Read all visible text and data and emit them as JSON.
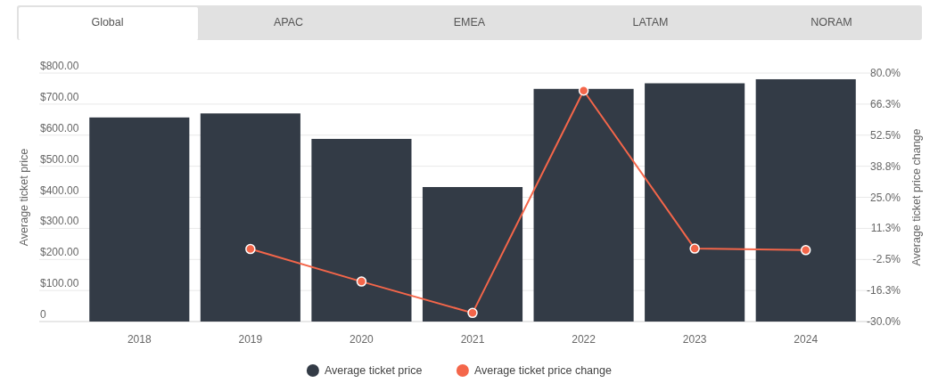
{
  "chart_data": {
    "type": "bar",
    "categories": [
      "2018",
      "2019",
      "2020",
      "2021",
      "2022",
      "2023",
      "2024"
    ],
    "ylabel": "Average ticket price",
    "y2label": "Average ticket price change",
    "series": [
      {
        "name": "Average ticket price",
        "color": "#333b46",
        "values": [
          657,
          670,
          588,
          433,
          749,
          767,
          780
        ]
      },
      {
        "name": "Average ticket price change",
        "type": "line",
        "axis": "y2",
        "color": "#f4664a",
        "values": [
          null,
          2.1,
          -12.3,
          -26.2,
          72.2,
          2.3,
          1.6
        ]
      }
    ],
    "ylim": [
      0,
      800
    ],
    "yticks": [
      {
        "value": 0,
        "label": "0"
      },
      {
        "value": 100,
        "label": "$100.00"
      },
      {
        "value": 200,
        "label": "$200.00"
      },
      {
        "value": 300,
        "label": "$300.00"
      },
      {
        "value": 400,
        "label": "$400.00"
      },
      {
        "value": 500,
        "label": "$500.00"
      },
      {
        "value": 600,
        "label": "$600.00"
      },
      {
        "value": 700,
        "label": "$700.00"
      },
      {
        "value": 800,
        "label": "$800.00"
      }
    ],
    "y2lim": [
      -30,
      80
    ],
    "y2ticks": [
      {
        "value": -30,
        "label": "-30.0%"
      },
      {
        "value": -16.25,
        "label": "-16.3%"
      },
      {
        "value": -2.5,
        "label": "-2.5%"
      },
      {
        "value": 11.25,
        "label": "11.3%"
      },
      {
        "value": 25,
        "label": "25.0%"
      },
      {
        "value": 38.75,
        "label": "38.8%"
      },
      {
        "value": 52.5,
        "label": "52.5%"
      },
      {
        "value": 66.25,
        "label": "66.3%"
      },
      {
        "value": 80,
        "label": "80.0%"
      }
    ],
    "annotations": [
      "Global",
      "APAC",
      "EMEA",
      "LATAM",
      "NORAM"
    ],
    "grid": "y",
    "legend": "bottom",
    "marker": "circle"
  }
}
